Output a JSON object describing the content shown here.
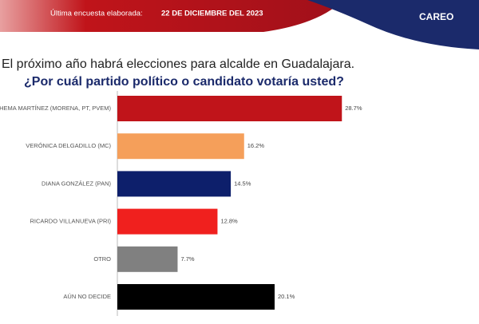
{
  "header": {
    "survey_label": "Última encuesta elaborada:",
    "date": "22 DE DICIEMBRE DEL 2023",
    "brand": "CAREO"
  },
  "chart_data": {
    "type": "bar",
    "orientation": "horizontal",
    "title": "El próximo año habrá elecciones para alcalde en Guadalajara.",
    "subtitle": "¿Por cuál partido político o candidato votaría usted?",
    "categories": [
      "CHEMA MARTÍNEZ (MORENA, PT, PVEM)",
      "VERÓNICA DELGADILLO (MC)",
      "DIANA GONZÁLEZ (PAN)",
      "RICARDO VILLANUEVA (PRI)",
      "OTRO",
      "AÚN NO DECIDE"
    ],
    "values": [
      28.7,
      16.2,
      14.5,
      12.8,
      7.7,
      20.1
    ],
    "value_labels": [
      "28.7%",
      "16.2%",
      "14.5%",
      "12.8%",
      "7.7%",
      "20.1%"
    ],
    "colors": [
      "#c0141a",
      "#f59f5a",
      "#0d1f6b",
      "#f0201e",
      "#808080",
      "#000000"
    ],
    "xlim": [
      0,
      30
    ]
  }
}
